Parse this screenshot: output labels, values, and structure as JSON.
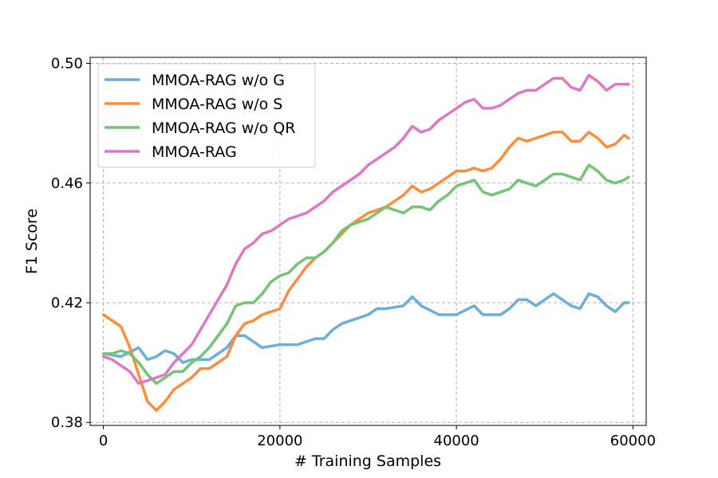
{
  "chart_data": {
    "type": "line",
    "xlabel": "# Training Samples",
    "ylabel": "F1 Score",
    "xlim": [
      -1500,
      61500
    ],
    "ylim": [
      0.379,
      0.502
    ],
    "xticks": [
      0,
      20000,
      40000,
      60000
    ],
    "xtick_labels": [
      "0",
      "20000",
      "40000",
      "60000"
    ],
    "yticks": [
      0.38,
      0.42,
      0.46,
      0.5
    ],
    "ytick_labels": [
      "0.38",
      "0.42",
      "0.46",
      "0.50"
    ],
    "grid": true,
    "legend_position": "top-left",
    "series": [
      {
        "name": "MMOA-RAG w/o G",
        "color": "#6baed6",
        "x": [
          0,
          2000,
          4000,
          5000,
          6000,
          7000,
          8000,
          9000,
          10000,
          12000,
          14000,
          15000,
          16000,
          17000,
          18000,
          20000,
          22000,
          24000,
          25000,
          26000,
          27000,
          28000,
          29000,
          30000,
          31000,
          32000,
          34000,
          35000,
          36000,
          38000,
          40000,
          42000,
          43000,
          44000,
          45000,
          46000,
          47000,
          48000,
          49000,
          50000,
          51000,
          52000,
          53000,
          54000,
          55000,
          56000,
          57000,
          58000,
          59000,
          59500
        ],
        "y": [
          0.403,
          0.402,
          0.405,
          0.401,
          0.402,
          0.404,
          0.403,
          0.4,
          0.401,
          0.401,
          0.405,
          0.409,
          0.409,
          0.407,
          0.405,
          0.406,
          0.406,
          0.408,
          0.408,
          0.411,
          0.413,
          0.414,
          0.415,
          0.416,
          0.418,
          0.418,
          0.419,
          0.422,
          0.419,
          0.416,
          0.416,
          0.419,
          0.416,
          0.416,
          0.416,
          0.418,
          0.421,
          0.421,
          0.419,
          0.421,
          0.423,
          0.421,
          0.419,
          0.418,
          0.423,
          0.422,
          0.419,
          0.417,
          0.42,
          0.42
        ]
      },
      {
        "name": "MMOA-RAG w/o S",
        "color": "#fd8d3c",
        "x": [
          0,
          1000,
          2000,
          3000,
          4000,
          5000,
          6000,
          7000,
          8000,
          9000,
          10000,
          11000,
          12000,
          13000,
          14000,
          15000,
          16000,
          17000,
          18000,
          19000,
          20000,
          21000,
          22000,
          23000,
          24000,
          25000,
          26000,
          27000,
          28000,
          29000,
          30000,
          31000,
          32000,
          33000,
          34000,
          35000,
          36000,
          37000,
          38000,
          39000,
          40000,
          41000,
          42000,
          43000,
          44000,
          45000,
          46000,
          47000,
          48000,
          49000,
          50000,
          51000,
          52000,
          53000,
          54000,
          55000,
          56000,
          57000,
          58000,
          59000,
          59500
        ],
        "y": [
          0.416,
          0.414,
          0.412,
          0.405,
          0.396,
          0.387,
          0.384,
          0.387,
          0.391,
          0.393,
          0.395,
          0.398,
          0.398,
          0.4,
          0.402,
          0.409,
          0.413,
          0.414,
          0.416,
          0.417,
          0.418,
          0.424,
          0.428,
          0.432,
          0.435,
          0.437,
          0.44,
          0.443,
          0.446,
          0.448,
          0.45,
          0.451,
          0.452,
          0.454,
          0.456,
          0.459,
          0.457,
          0.458,
          0.46,
          0.462,
          0.464,
          0.464,
          0.465,
          0.464,
          0.465,
          0.468,
          0.472,
          0.475,
          0.474,
          0.475,
          0.476,
          0.477,
          0.477,
          0.474,
          0.474,
          0.477,
          0.475,
          0.472,
          0.473,
          0.476,
          0.475
        ]
      },
      {
        "name": "MMOA-RAG w/o QR",
        "color": "#74c476",
        "x": [
          0,
          1000,
          2000,
          3000,
          4000,
          5000,
          6000,
          7000,
          8000,
          9000,
          10000,
          11000,
          12000,
          13000,
          14000,
          15000,
          16000,
          17000,
          18000,
          19000,
          20000,
          21000,
          22000,
          23000,
          24000,
          25000,
          26000,
          27000,
          28000,
          29000,
          30000,
          31000,
          32000,
          33000,
          34000,
          35000,
          36000,
          37000,
          38000,
          39000,
          40000,
          41000,
          42000,
          43000,
          44000,
          45000,
          46000,
          47000,
          48000,
          49000,
          50000,
          51000,
          52000,
          53000,
          54000,
          55000,
          56000,
          57000,
          58000,
          59000,
          59500
        ],
        "y": [
          0.403,
          0.403,
          0.404,
          0.403,
          0.4,
          0.396,
          0.393,
          0.395,
          0.397,
          0.397,
          0.4,
          0.402,
          0.405,
          0.409,
          0.413,
          0.419,
          0.42,
          0.42,
          0.423,
          0.427,
          0.429,
          0.43,
          0.433,
          0.435,
          0.435,
          0.437,
          0.44,
          0.444,
          0.446,
          0.447,
          0.448,
          0.45,
          0.452,
          0.451,
          0.45,
          0.452,
          0.452,
          0.451,
          0.454,
          0.456,
          0.459,
          0.46,
          0.461,
          0.457,
          0.456,
          0.457,
          0.458,
          0.461,
          0.46,
          0.459,
          0.461,
          0.463,
          0.463,
          0.462,
          0.461,
          0.466,
          0.464,
          0.461,
          0.46,
          0.461,
          0.462
        ]
      },
      {
        "name": "MMOA-RAG",
        "color": "#de77c6",
        "x": [
          0,
          1000,
          2000,
          3000,
          4000,
          5000,
          6000,
          7000,
          8000,
          9000,
          10000,
          11000,
          12000,
          13000,
          14000,
          15000,
          16000,
          17000,
          18000,
          19000,
          20000,
          21000,
          22000,
          23000,
          24000,
          25000,
          26000,
          27000,
          28000,
          29000,
          30000,
          31000,
          32000,
          33000,
          34000,
          35000,
          36000,
          37000,
          38000,
          39000,
          40000,
          41000,
          42000,
          43000,
          44000,
          45000,
          46000,
          47000,
          48000,
          49000,
          50000,
          51000,
          52000,
          53000,
          54000,
          55000,
          56000,
          57000,
          58000,
          59000,
          59500
        ],
        "y": [
          0.402,
          0.401,
          0.399,
          0.397,
          0.393,
          0.394,
          0.395,
          0.396,
          0.4,
          0.403,
          0.406,
          0.411,
          0.416,
          0.421,
          0.426,
          0.433,
          0.438,
          0.44,
          0.443,
          0.444,
          0.446,
          0.448,
          0.449,
          0.45,
          0.452,
          0.454,
          0.457,
          0.459,
          0.461,
          0.463,
          0.466,
          0.468,
          0.47,
          0.472,
          0.475,
          0.479,
          0.477,
          0.478,
          0.481,
          0.483,
          0.485,
          0.487,
          0.488,
          0.485,
          0.485,
          0.486,
          0.488,
          0.49,
          0.491,
          0.491,
          0.493,
          0.495,
          0.495,
          0.492,
          0.491,
          0.496,
          0.494,
          0.491,
          0.493,
          0.493,
          0.493
        ]
      }
    ]
  }
}
